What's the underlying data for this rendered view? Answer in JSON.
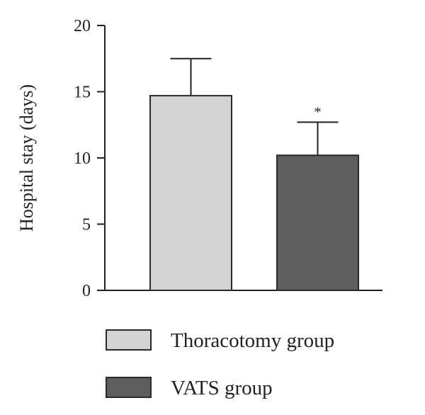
{
  "chart_data": {
    "type": "bar",
    "title": "",
    "xlabel": "",
    "ylabel": "Hospital stay (days)",
    "ylim": [
      0,
      20
    ],
    "yticks": [
      0,
      5,
      10,
      15,
      20
    ],
    "grid": false,
    "legend_position": "bottom",
    "categories": [
      "Thoracotomy group",
      "VATS group"
    ],
    "values": [
      14.7,
      10.2
    ],
    "error_upper": [
      17.5,
      12.7
    ],
    "bar_colors": [
      "#d4d4d4",
      "#5d5d5d"
    ],
    "annotations": [
      {
        "category": "VATS group",
        "text": "*"
      }
    ],
    "legend": [
      {
        "label": "Thoracotomy group",
        "color": "#d4d4d4"
      },
      {
        "label": "VATS group",
        "color": "#5d5d5d"
      }
    ]
  }
}
